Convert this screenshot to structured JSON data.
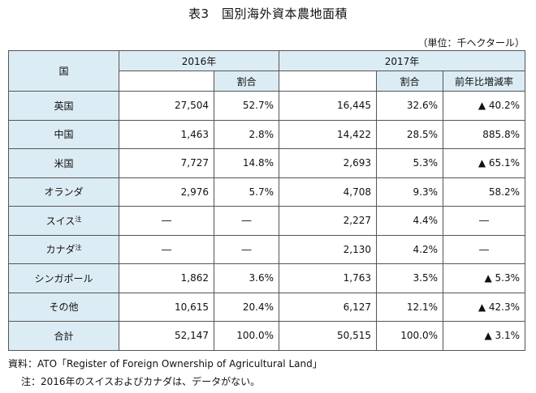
{
  "title": "表3　国別海外資本農地面積",
  "unit": "（単位：千ヘクタール）",
  "headers": {
    "country": "国",
    "y2016": "2016年",
    "y2017": "2017年",
    "share_2016": "割合",
    "share_2017": "割合",
    "change": "前年比増減率"
  },
  "rows": [
    {
      "country": "英国",
      "note": "",
      "area_2016": "27,504",
      "share_2016": "52.7%",
      "area_2017": "16,445",
      "share_2017": "32.6%",
      "change": "▲ 40.2%"
    },
    {
      "country": "中国",
      "note": "",
      "area_2016": "1,463",
      "share_2016": "2.8%",
      "area_2017": "14,422",
      "share_2017": "28.5%",
      "change": "885.8%"
    },
    {
      "country": "米国",
      "note": "",
      "area_2016": "7,727",
      "share_2016": "14.8%",
      "area_2017": "2,693",
      "share_2017": "5.3%",
      "change": "▲ 65.1%"
    },
    {
      "country": "オランダ",
      "note": "",
      "area_2016": "2,976",
      "share_2016": "5.7%",
      "area_2017": "4,708",
      "share_2017": "9.3%",
      "change": "58.2%"
    },
    {
      "country": "スイス",
      "note": "注",
      "area_2016": "―",
      "share_2016": "―",
      "area_2017": "2,227",
      "share_2017": "4.4%",
      "change": "―"
    },
    {
      "country": "カナダ",
      "note": "注",
      "area_2016": "―",
      "share_2016": "―",
      "area_2017": "2,130",
      "share_2017": "4.2%",
      "change": "―"
    },
    {
      "country": "シンガポール",
      "note": "",
      "area_2016": "1,862",
      "share_2016": "3.6%",
      "area_2017": "1,763",
      "share_2017": "3.5%",
      "change": "▲ 5.3%"
    },
    {
      "country": "その他",
      "note": "",
      "area_2016": "10,615",
      "share_2016": "20.4%",
      "area_2017": "6,127",
      "share_2017": "12.1%",
      "change": "▲ 42.3%"
    },
    {
      "country": "合計",
      "note": "",
      "area_2016": "52,147",
      "share_2016": "100.0%",
      "area_2017": "50,515",
      "share_2017": "100.0%",
      "change": "▲ 3.1%"
    }
  ],
  "source": "資料：ATO「Register of Foreign Ownership of Agricultural Land」",
  "note": "注：2016年のスイスおよびカナダは、データがない。",
  "colors": {
    "header_bg": "#dcecf4",
    "border": "#555555"
  }
}
